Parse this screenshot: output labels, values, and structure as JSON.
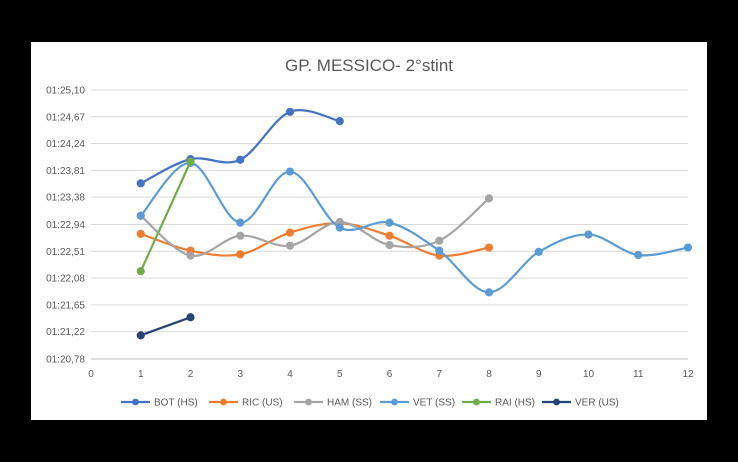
{
  "chart_data": {
    "type": "line",
    "title": "GP. MESSICO- 2°stint",
    "xlabel": "",
    "ylabel": "",
    "xlim": [
      0,
      12
    ],
    "x_ticks": [
      0,
      1,
      2,
      3,
      4,
      5,
      6,
      7,
      8,
      9,
      10,
      11,
      12
    ],
    "ylim": [
      80.78,
      85.1
    ],
    "y_ticks": [
      "01:20,78",
      "01:21,22",
      "01:21,65",
      "01:22,08",
      "01:22,51",
      "01:22,94",
      "01:23,38",
      "01:23,81",
      "01:24,24",
      "01:24,67",
      "01:25,10"
    ],
    "y_tick_values": [
      80.78,
      81.22,
      81.65,
      82.08,
      82.51,
      82.94,
      83.38,
      83.81,
      84.24,
      84.67,
      85.1
    ],
    "grid": true,
    "smoothed": true,
    "legend_position": "bottom",
    "series": [
      {
        "name": "BOT (HS)",
        "color": "#4472C4",
        "x": [
          1,
          2,
          3,
          4,
          5
        ],
        "values": [
          83.6,
          83.99,
          83.98,
          84.75,
          84.6
        ]
      },
      {
        "name": "RIC (US)",
        "color": "#ED7D31",
        "x": [
          1,
          2,
          3,
          4,
          5,
          6,
          7,
          8
        ],
        "values": [
          82.79,
          82.52,
          82.46,
          82.81,
          82.96,
          82.76,
          82.44,
          82.57
        ]
      },
      {
        "name": "HAM (SS)",
        "color": "#A5A5A5",
        "x": [
          1,
          2,
          3,
          4,
          5,
          6,
          7,
          8
        ],
        "values": [
          83.08,
          82.44,
          82.76,
          82.6,
          82.98,
          82.61,
          82.68,
          83.36
        ]
      },
      {
        "name": "VET (SS)",
        "color": "#5B9BD5",
        "x": [
          1,
          2,
          3,
          4,
          5,
          6,
          7,
          8,
          9,
          10,
          11,
          12
        ],
        "values": [
          83.08,
          83.93,
          82.97,
          83.79,
          82.89,
          82.97,
          82.52,
          81.85,
          82.5,
          82.78,
          82.45,
          82.57
        ]
      },
      {
        "name": "RAI (HS)",
        "color": "#70AD47",
        "x": [
          1,
          2
        ],
        "values": [
          82.19,
          83.95
        ]
      },
      {
        "name": "VER (US)",
        "color": "#264478",
        "x": [
          1,
          2
        ],
        "values": [
          81.16,
          81.45
        ]
      }
    ]
  }
}
